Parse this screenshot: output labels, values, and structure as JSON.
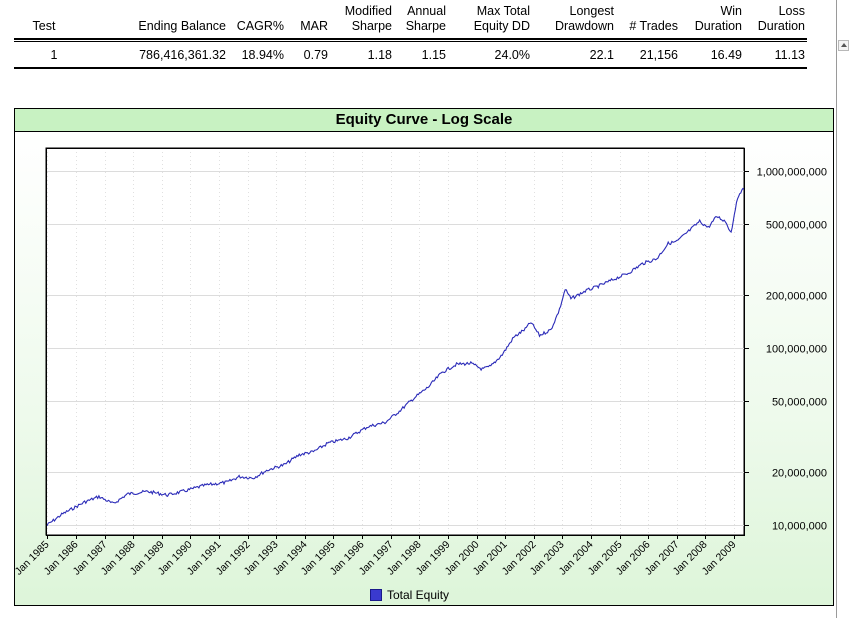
{
  "summary": {
    "headers": [
      {
        "l1": "",
        "l2": "Test"
      },
      {
        "l1": "",
        "l2": "Ending Balance"
      },
      {
        "l1": "",
        "l2": "CAGR%"
      },
      {
        "l1": "",
        "l2": "MAR"
      },
      {
        "l1": "Modified",
        "l2": "Sharpe"
      },
      {
        "l1": "Annual",
        "l2": "Sharpe"
      },
      {
        "l1": "Max Total",
        "l2": "Equity DD"
      },
      {
        "l1": "Longest",
        "l2": "Drawdown"
      },
      {
        "l1": "",
        "l2": "# Trades"
      },
      {
        "l1": "Win",
        "l2": "Duration"
      },
      {
        "l1": "Loss",
        "l2": "Duration"
      }
    ],
    "row": [
      "1",
      "786,416,361.32",
      "18.94%",
      "0.79",
      "1.18",
      "1.15",
      "24.0%",
      "22.1",
      "21,156",
      "16.49",
      "11.13"
    ]
  },
  "chart_data": {
    "type": "line",
    "title": "Equity Curve - Log Scale",
    "xlabel": "",
    "ylabel": "",
    "yscale": "log",
    "ylim": [
      8800000,
      1350000000
    ],
    "xlim": [
      1984.95,
      2009.35
    ],
    "y_ticks": [
      10000000,
      20000000,
      50000000,
      100000000,
      200000000,
      500000000,
      1000000000
    ],
    "y_tick_labels": [
      "10,000,000",
      "20,000,000",
      "50,000,000",
      "100,000,000",
      "200,000,000",
      "500,000,000",
      "1,000,000,000"
    ],
    "x_ticks": [
      1985,
      1986,
      1987,
      1988,
      1989,
      1990,
      1991,
      1992,
      1993,
      1994,
      1995,
      1996,
      1997,
      1998,
      1999,
      2000,
      2001,
      2002,
      2003,
      2004,
      2005,
      2006,
      2007,
      2008,
      2009
    ],
    "x_tick_labels": [
      "Jan 1985",
      "Jan 1986",
      "Jan 1987",
      "Jan 1988",
      "Jan 1989",
      "Jan 1990",
      "Jan 1991",
      "Jan 1992",
      "Jan 1993",
      "Jan 1994",
      "Jan 1995",
      "Jan 1996",
      "Jan 1997",
      "Jan 1998",
      "Jan 1999",
      "Jan 2000",
      "Jan 2001",
      "Jan 2002",
      "Jan 2003",
      "Jan 2004",
      "Jan 2005",
      "Jan 2006",
      "Jan 2007",
      "Jan 2008",
      "Jan 2009"
    ],
    "grid": true,
    "legend": "bottom-center",
    "series": [
      {
        "name": "Total Equity",
        "color": "#2b2bb8",
        "points": [
          {
            "x": 1984.95,
            "y": 9900000
          },
          {
            "x": 1985.5,
            "y": 11500000
          },
          {
            "x": 1986.3,
            "y": 13500000
          },
          {
            "x": 1986.8,
            "y": 14500000
          },
          {
            "x": 1987.3,
            "y": 13200000
          },
          {
            "x": 1987.8,
            "y": 15000000
          },
          {
            "x": 1988.5,
            "y": 15500000
          },
          {
            "x": 1989.2,
            "y": 14800000
          },
          {
            "x": 1989.8,
            "y": 15600000
          },
          {
            "x": 1990.5,
            "y": 16800000
          },
          {
            "x": 1991.3,
            "y": 17500000
          },
          {
            "x": 1991.7,
            "y": 18800000
          },
          {
            "x": 1992.2,
            "y": 18500000
          },
          {
            "x": 1992.7,
            "y": 20500000
          },
          {
            "x": 1993.3,
            "y": 22000000
          },
          {
            "x": 1993.8,
            "y": 25000000
          },
          {
            "x": 1994.3,
            "y": 26000000
          },
          {
            "x": 1994.8,
            "y": 29000000
          },
          {
            "x": 1995.5,
            "y": 31000000
          },
          {
            "x": 1996.2,
            "y": 36000000
          },
          {
            "x": 1996.8,
            "y": 38000000
          },
          {
            "x": 1997.3,
            "y": 44000000
          },
          {
            "x": 1997.8,
            "y": 52000000
          },
          {
            "x": 1998.3,
            "y": 60000000
          },
          {
            "x": 1998.8,
            "y": 73000000
          },
          {
            "x": 1999.3,
            "y": 81000000
          },
          {
            "x": 1999.8,
            "y": 82000000
          },
          {
            "x": 2000.2,
            "y": 76000000
          },
          {
            "x": 2000.5,
            "y": 79000000
          },
          {
            "x": 2000.9,
            "y": 92000000
          },
          {
            "x": 2001.3,
            "y": 115000000
          },
          {
            "x": 2001.7,
            "y": 128000000
          },
          {
            "x": 2001.9,
            "y": 140000000
          },
          {
            "x": 2002.2,
            "y": 118000000
          },
          {
            "x": 2002.6,
            "y": 127000000
          },
          {
            "x": 2002.9,
            "y": 165000000
          },
          {
            "x": 2003.1,
            "y": 215000000
          },
          {
            "x": 2003.3,
            "y": 190000000
          },
          {
            "x": 2003.8,
            "y": 210000000
          },
          {
            "x": 2004.3,
            "y": 225000000
          },
          {
            "x": 2004.8,
            "y": 245000000
          },
          {
            "x": 2005.3,
            "y": 265000000
          },
          {
            "x": 2005.8,
            "y": 300000000
          },
          {
            "x": 2006.3,
            "y": 320000000
          },
          {
            "x": 2006.7,
            "y": 390000000
          },
          {
            "x": 2007.0,
            "y": 400000000
          },
          {
            "x": 2007.5,
            "y": 470000000
          },
          {
            "x": 2007.8,
            "y": 520000000
          },
          {
            "x": 2008.1,
            "y": 480000000
          },
          {
            "x": 2008.4,
            "y": 555000000
          },
          {
            "x": 2008.7,
            "y": 520000000
          },
          {
            "x": 2008.9,
            "y": 450000000
          },
          {
            "x": 2009.05,
            "y": 620000000
          },
          {
            "x": 2009.2,
            "y": 760000000
          },
          {
            "x": 2009.35,
            "y": 790000000
          }
        ]
      }
    ]
  }
}
